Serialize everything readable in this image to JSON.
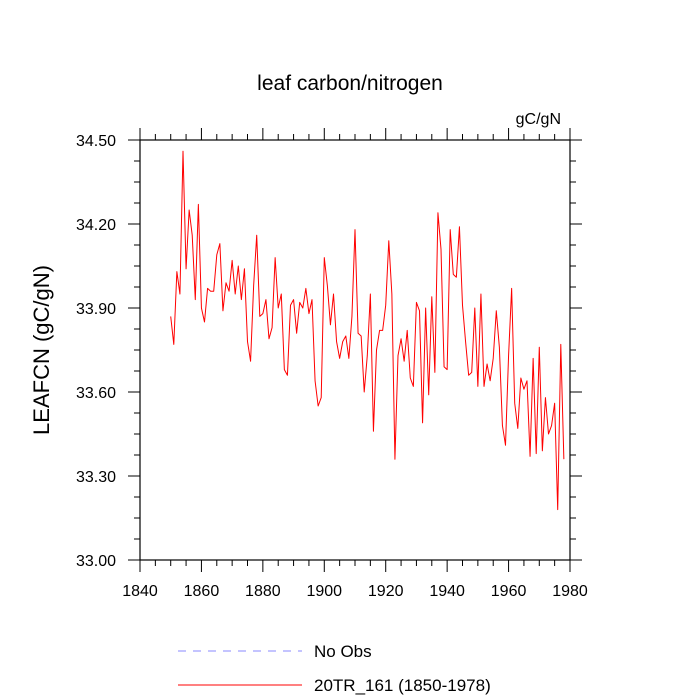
{
  "chart_data": {
    "type": "line",
    "title": "leaf carbon/nitrogen",
    "units": "gC/gN",
    "xlabel": "",
    "ylabel": "LEAFCN  (gC/gN)",
    "xlim": [
      1840,
      1980
    ],
    "ylim": [
      33.0,
      34.5
    ],
    "x_ticks": [
      1840,
      1860,
      1880,
      1900,
      1920,
      1940,
      1960,
      1980
    ],
    "x_tick_labels": [
      "1840",
      "1860",
      "1880",
      "1900",
      "1920",
      "1940",
      "1960",
      "1980"
    ],
    "y_ticks": [
      33.0,
      33.3,
      33.6,
      33.9,
      34.2,
      34.5
    ],
    "y_tick_labels": [
      "33.00",
      "33.30",
      "33.60",
      "33.90",
      "34.20",
      "34.50"
    ],
    "legend_position": "bottom",
    "legend": [
      {
        "label": "No Obs",
        "color": "#8888ff",
        "style": "dashed"
      },
      {
        "label": "20TR_161 (1850-1978)",
        "color": "#ff0000",
        "style": "solid"
      }
    ],
    "series": [
      {
        "name": "20TR_161 (1850-1978)",
        "color": "#ff0000",
        "x_start": 1850,
        "x_step": 1,
        "values": [
          33.87,
          33.77,
          34.03,
          33.95,
          34.46,
          34.04,
          34.25,
          34.16,
          33.93,
          34.27,
          33.9,
          33.85,
          33.97,
          33.96,
          33.96,
          34.09,
          34.13,
          33.89,
          33.99,
          33.96,
          34.07,
          33.95,
          34.05,
          33.93,
          34.04,
          33.78,
          33.71,
          33.98,
          34.16,
          33.87,
          33.88,
          33.93,
          33.79,
          33.83,
          34.08,
          33.9,
          33.95,
          33.68,
          33.66,
          33.91,
          33.93,
          33.81,
          33.92,
          33.9,
          33.97,
          33.88,
          33.93,
          33.64,
          33.55,
          33.58,
          34.08,
          33.98,
          33.84,
          33.95,
          33.78,
          33.72,
          33.78,
          33.8,
          33.72,
          33.87,
          34.18,
          33.81,
          33.8,
          33.6,
          33.73,
          33.95,
          33.46,
          33.75,
          33.82,
          33.82,
          33.91,
          34.14,
          33.95,
          33.36,
          33.73,
          33.79,
          33.71,
          33.82,
          33.65,
          33.62,
          33.92,
          33.89,
          33.49,
          33.9,
          33.59,
          33.94,
          33.67,
          34.24,
          34.11,
          33.69,
          33.68,
          34.18,
          34.02,
          34.01,
          34.19,
          33.91,
          33.78,
          33.66,
          33.67,
          33.9,
          33.62,
          33.95,
          33.62,
          33.7,
          33.64,
          33.72,
          33.89,
          33.76,
          33.48,
          33.41,
          33.73,
          33.97,
          33.56,
          33.47,
          33.65,
          33.61,
          33.64,
          33.37,
          33.72,
          33.38,
          33.76,
          33.39,
          33.58,
          33.45,
          33.48,
          33.56,
          33.18,
          33.77,
          33.36
        ]
      }
    ]
  }
}
